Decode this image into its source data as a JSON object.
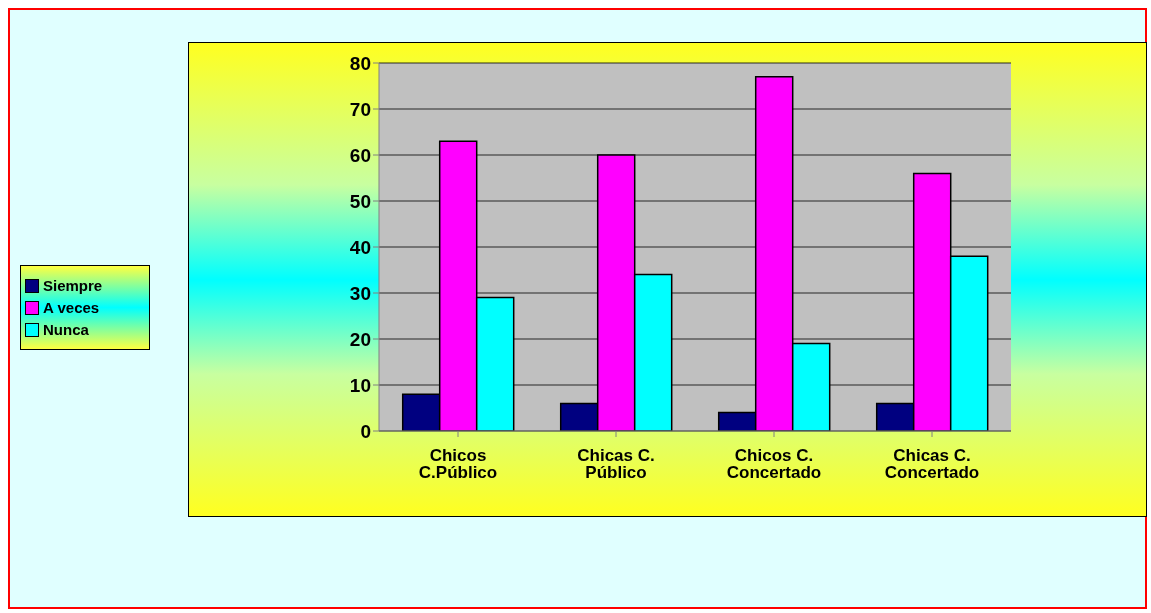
{
  "chart_data": {
    "type": "bar",
    "categories": [
      "Chicos C.Público",
      "Chicas C. Público",
      "Chicos C. Concertado",
      "Chicas C. Concertado"
    ],
    "series": [
      {
        "name": "Siempre",
        "color": "#000080",
        "values": [
          8,
          6,
          4,
          6
        ]
      },
      {
        "name": "A veces",
        "color": "#ff00ff",
        "values": [
          63,
          60,
          77,
          56
        ]
      },
      {
        "name": "Nunca",
        "color": "#00ffff",
        "values": [
          29,
          34,
          19,
          38
        ]
      }
    ],
    "ylim": [
      0,
      80
    ],
    "yticks": [
      0,
      10,
      20,
      30,
      40,
      50,
      60,
      70,
      80
    ],
    "grid": "y",
    "legend": "left"
  }
}
